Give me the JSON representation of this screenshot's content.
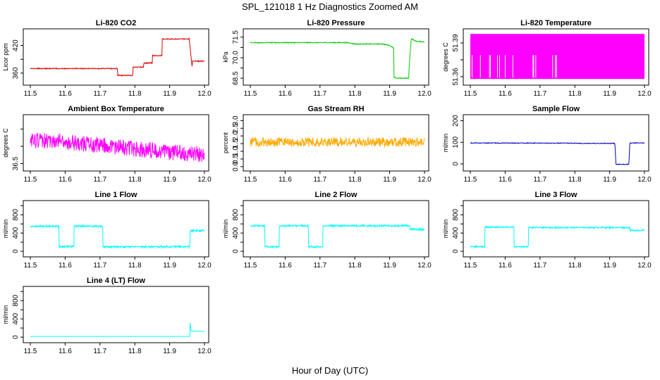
{
  "main_title": "SPL_121018  1 Hz Diagnostics Zoomed AM",
  "x_axis_label": "Hour of Day (UTC)",
  "chart_data": [
    {
      "id": "co2",
      "type": "line",
      "title": "Li-820 CO2",
      "ylabel": "Licor ppm",
      "color": "#e00000",
      "xlim": [
        11.5,
        12.0
      ],
      "ylim": [
        340,
        450
      ],
      "yticks": [
        360,
        390,
        420
      ],
      "ytick_labels": [
        "360",
        "",
        "420"
      ],
      "noise": 1.0,
      "x": [
        11.5,
        11.75,
        11.75,
        11.795,
        11.795,
        11.825,
        11.825,
        11.85,
        11.85,
        11.878,
        11.878,
        11.93,
        11.93,
        11.955,
        11.955,
        11.965,
        11.965,
        12.0
      ],
      "y": [
        370,
        370,
        355,
        355,
        373,
        373,
        382,
        382,
        398,
        398,
        434,
        434,
        434,
        434,
        442,
        370,
        386,
        386
      ]
    },
    {
      "id": "pressure",
      "type": "line",
      "title": "Li-820 Pressure",
      "ylabel": "kPa",
      "color": "#00cc00",
      "xlim": [
        11.5,
        12.0
      ],
      "ylim": [
        68.2,
        71.9
      ],
      "yticks": [
        68.5,
        69.25,
        70.0,
        70.75,
        71.5
      ],
      "ytick_labels": [
        "68.5",
        "",
        "70.0",
        "",
        "71.5"
      ],
      "noise": 0.03,
      "x": [
        11.5,
        11.78,
        11.8,
        11.88,
        11.9,
        11.912,
        11.912,
        11.92,
        11.955,
        11.955,
        11.962,
        11.975,
        12.0
      ],
      "y": [
        71.1,
        71.1,
        71.0,
        71.0,
        70.9,
        70.7,
        68.6,
        68.5,
        68.5,
        69.0,
        71.4,
        71.2,
        71.15
      ]
    },
    {
      "id": "licor_temp",
      "type": "line",
      "title": "Li-820 Temperature",
      "ylabel": "degrees C",
      "color": "#ff00ff",
      "xlim": [
        11.5,
        12.0
      ],
      "ylim": [
        51.355,
        51.4
      ],
      "yticks": [
        51.36,
        51.375,
        51.39
      ],
      "ytick_labels": [
        "51.36",
        "",
        "51.39"
      ],
      "noise": 0,
      "band": [
        51.358,
        51.398
      ],
      "x": [
        11.5,
        12.0
      ],
      "y": [
        51.378,
        51.378
      ]
    },
    {
      "id": "ambient_temp",
      "type": "line",
      "title": "Ambient Box Temperature",
      "ylabel": "degrees C",
      "color": "#ff00ff",
      "xlim": [
        11.5,
        12.0
      ],
      "ylim": [
        36.3,
        38.5
      ],
      "yticks": [
        36.5,
        37.25,
        38.0
      ],
      "ytick_labels": [
        "36.5",
        "",
        ""
      ],
      "noise": 0.35,
      "x": [
        11.5,
        11.6,
        11.7,
        11.8,
        11.9,
        12.0
      ],
      "y": [
        37.5,
        37.45,
        37.3,
        37.15,
        37.0,
        36.9
      ]
    },
    {
      "id": "rh",
      "type": "line",
      "title": "Gas Stream RH",
      "ylabel": "percent",
      "color": "#ffaa00",
      "xlim": [
        11.5,
        12.0
      ],
      "ylim": [
        -0.1,
        3.2
      ],
      "yticks": [
        0.0,
        0.5,
        1.0,
        1.5,
        2.0,
        2.5,
        3.0
      ],
      "ytick_labels": [
        "0.0",
        "0.5",
        "1.0",
        "1.5",
        "2.0",
        "2.5",
        "3.0"
      ],
      "noise": 0.3,
      "x": [
        11.5,
        12.0
      ],
      "y": [
        1.6,
        1.6
      ]
    },
    {
      "id": "sample_flow",
      "type": "line",
      "title": "Sample Flow",
      "ylabel": "ml/min",
      "color": "#0000cc",
      "xlim": [
        11.5,
        12.0
      ],
      "ylim": [
        -20,
        215
      ],
      "yticks": [
        0,
        100,
        200
      ],
      "ytick_labels": [
        "0",
        "100",
        "200"
      ],
      "noise": 1.5,
      "x": [
        11.5,
        11.8,
        11.82,
        11.915,
        11.918,
        11.955,
        11.958,
        12.0
      ],
      "y": [
        97,
        96,
        95,
        95,
        -2,
        -2,
        97,
        97
      ]
    },
    {
      "id": "line1",
      "type": "line",
      "title": "Line 1 Flow",
      "ylabel": "ml/min",
      "color": "#00ffff",
      "xlim": [
        11.5,
        12.0
      ],
      "ylim": [
        -60,
        1050
      ],
      "yticks": [
        0,
        200,
        400,
        600,
        800,
        1000
      ],
      "ytick_labels": [
        "0",
        "",
        "400",
        "",
        "800",
        ""
      ],
      "noise": 20,
      "x": [
        11.5,
        11.582,
        11.582,
        11.625,
        11.625,
        11.708,
        11.708,
        11.958,
        11.958,
        12.0
      ],
      "y": [
        550,
        550,
        100,
        100,
        550,
        550,
        100,
        100,
        450,
        450
      ]
    },
    {
      "id": "line2",
      "type": "line",
      "title": "Line 2 Flow",
      "ylabel": "ml/min",
      "color": "#00ffff",
      "xlim": [
        11.5,
        12.0
      ],
      "ylim": [
        -60,
        1050
      ],
      "yticks": [
        0,
        200,
        400,
        600,
        800,
        1000
      ],
      "ytick_labels": [
        "0",
        "",
        "400",
        "",
        "800",
        ""
      ],
      "noise": 20,
      "x": [
        11.5,
        11.542,
        11.542,
        11.583,
        11.583,
        11.667,
        11.667,
        11.708,
        11.708,
        11.958,
        11.958,
        12.0
      ],
      "y": [
        560,
        560,
        100,
        100,
        560,
        560,
        100,
        100,
        560,
        560,
        480,
        480
      ]
    },
    {
      "id": "line3",
      "type": "line",
      "title": "Line 3 Flow",
      "ylabel": "ml/min",
      "color": "#00ffff",
      "xlim": [
        11.5,
        12.0
      ],
      "ylim": [
        -60,
        1050
      ],
      "yticks": [
        0,
        200,
        400,
        600,
        800,
        1000
      ],
      "ytick_labels": [
        "0",
        "",
        "400",
        "",
        "800",
        ""
      ],
      "noise": 15,
      "x": [
        11.5,
        11.542,
        11.542,
        11.625,
        11.625,
        11.667,
        11.667,
        11.958,
        11.958,
        12.0
      ],
      "y": [
        100,
        100,
        530,
        530,
        100,
        100,
        520,
        520,
        460,
        460
      ]
    },
    {
      "id": "line4",
      "type": "line",
      "title": "Line 4 (LT) Flow",
      "ylabel": "ml/min",
      "color": "#00ffff",
      "xlim": [
        11.5,
        12.0
      ],
      "ylim": [
        -60,
        1050
      ],
      "yticks": [
        0,
        200,
        400,
        600,
        800,
        1000
      ],
      "ytick_labels": [
        "0",
        "",
        "400",
        "",
        "800",
        ""
      ],
      "noise": 0,
      "x": [
        11.5,
        11.958,
        11.958,
        11.962,
        11.962,
        12.0
      ],
      "y": [
        15,
        15,
        350,
        130,
        130,
        130
      ]
    }
  ],
  "x_ticks": [
    11.5,
    11.6,
    11.7,
    11.8,
    11.9,
    12.0
  ],
  "x_tick_labels": [
    "11.5",
    "11.6",
    "11.7",
    "11.8",
    "11.9",
    "12.0"
  ]
}
